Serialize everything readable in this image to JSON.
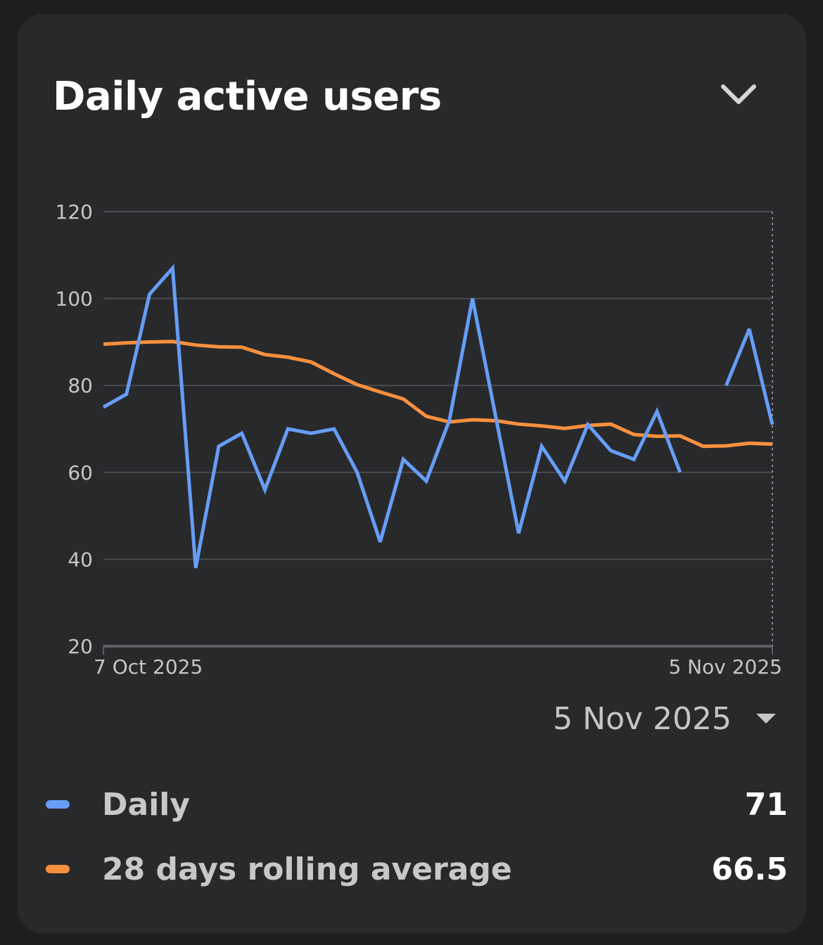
{
  "card": {
    "title": "Daily active users",
    "collapse_icon": "chevron-down-icon"
  },
  "date_selector": {
    "selected": "5 Nov 2025",
    "icon": "caret-down-icon"
  },
  "legend": [
    {
      "label": "Daily",
      "value": "71",
      "color": "#669df6"
    },
    {
      "label": "28 days rolling average",
      "value": "66.5",
      "color": "#fa903e"
    }
  ],
  "chart_data": {
    "type": "line",
    "title": "Daily active users",
    "x_start_label": "7 Oct 2025",
    "x_end_label": "5 Nov 2025",
    "yticks": [
      20,
      40,
      60,
      80,
      100,
      120
    ],
    "ylim": [
      20,
      120
    ],
    "x": [
      0,
      1,
      2,
      3,
      4,
      5,
      6,
      7,
      8,
      9,
      10,
      11,
      12,
      13,
      14,
      15,
      16,
      17,
      18,
      19,
      20,
      21,
      22,
      23,
      24,
      25,
      26,
      27,
      28,
      29
    ],
    "series": [
      {
        "name": "Daily",
        "color": "#669df6",
        "values": [
          75,
          78,
          101,
          107,
          38,
          66,
          69,
          56,
          70,
          69,
          70,
          60,
          44,
          63,
          58,
          72,
          100,
          73,
          46,
          66,
          58,
          71,
          65,
          63,
          74,
          60,
          null,
          80,
          93,
          71
        ]
      },
      {
        "name": "28 days rolling average",
        "color": "#fa903e",
        "values": [
          89.5,
          89.8,
          90.0,
          90.1,
          89.3,
          88.9,
          88.8,
          87.1,
          86.5,
          85.4,
          82.7,
          80.2,
          78.5,
          76.9,
          72.9,
          71.6,
          72.1,
          71.9,
          71.1,
          70.7,
          70.1,
          70.8,
          71.1,
          68.7,
          68.3,
          68.4,
          66.0,
          66.1,
          66.7,
          66.5
        ]
      }
    ],
    "selected_index": 29,
    "grid": true
  }
}
